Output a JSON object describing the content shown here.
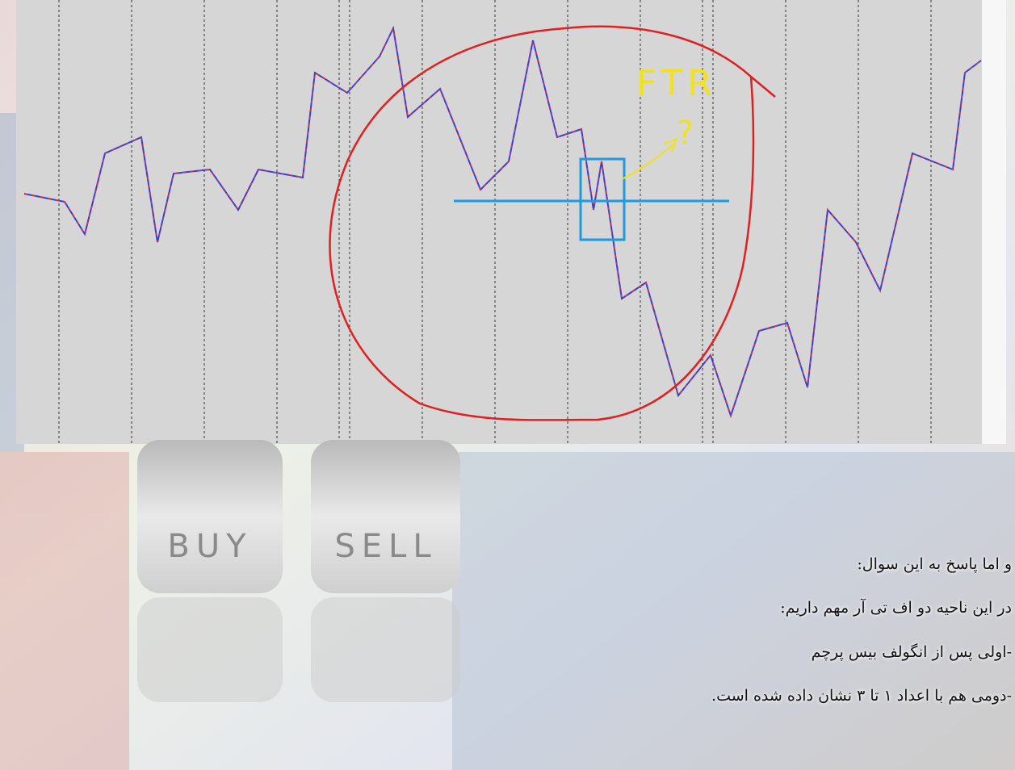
{
  "chart_annotations": {
    "label": "FTR",
    "mark": "?"
  },
  "dice": [
    "BUY",
    "SELL"
  ],
  "body": {
    "lines": [
      "و اما پاسخ به این سوال:",
      "در این ناحیه دو اف تی آر مهم داریم:",
      "-اولی پس از انگولف بیس پرچم",
      "-دومی هم با اعداد ۱ تا ۳ نشان داده شده است."
    ]
  }
}
